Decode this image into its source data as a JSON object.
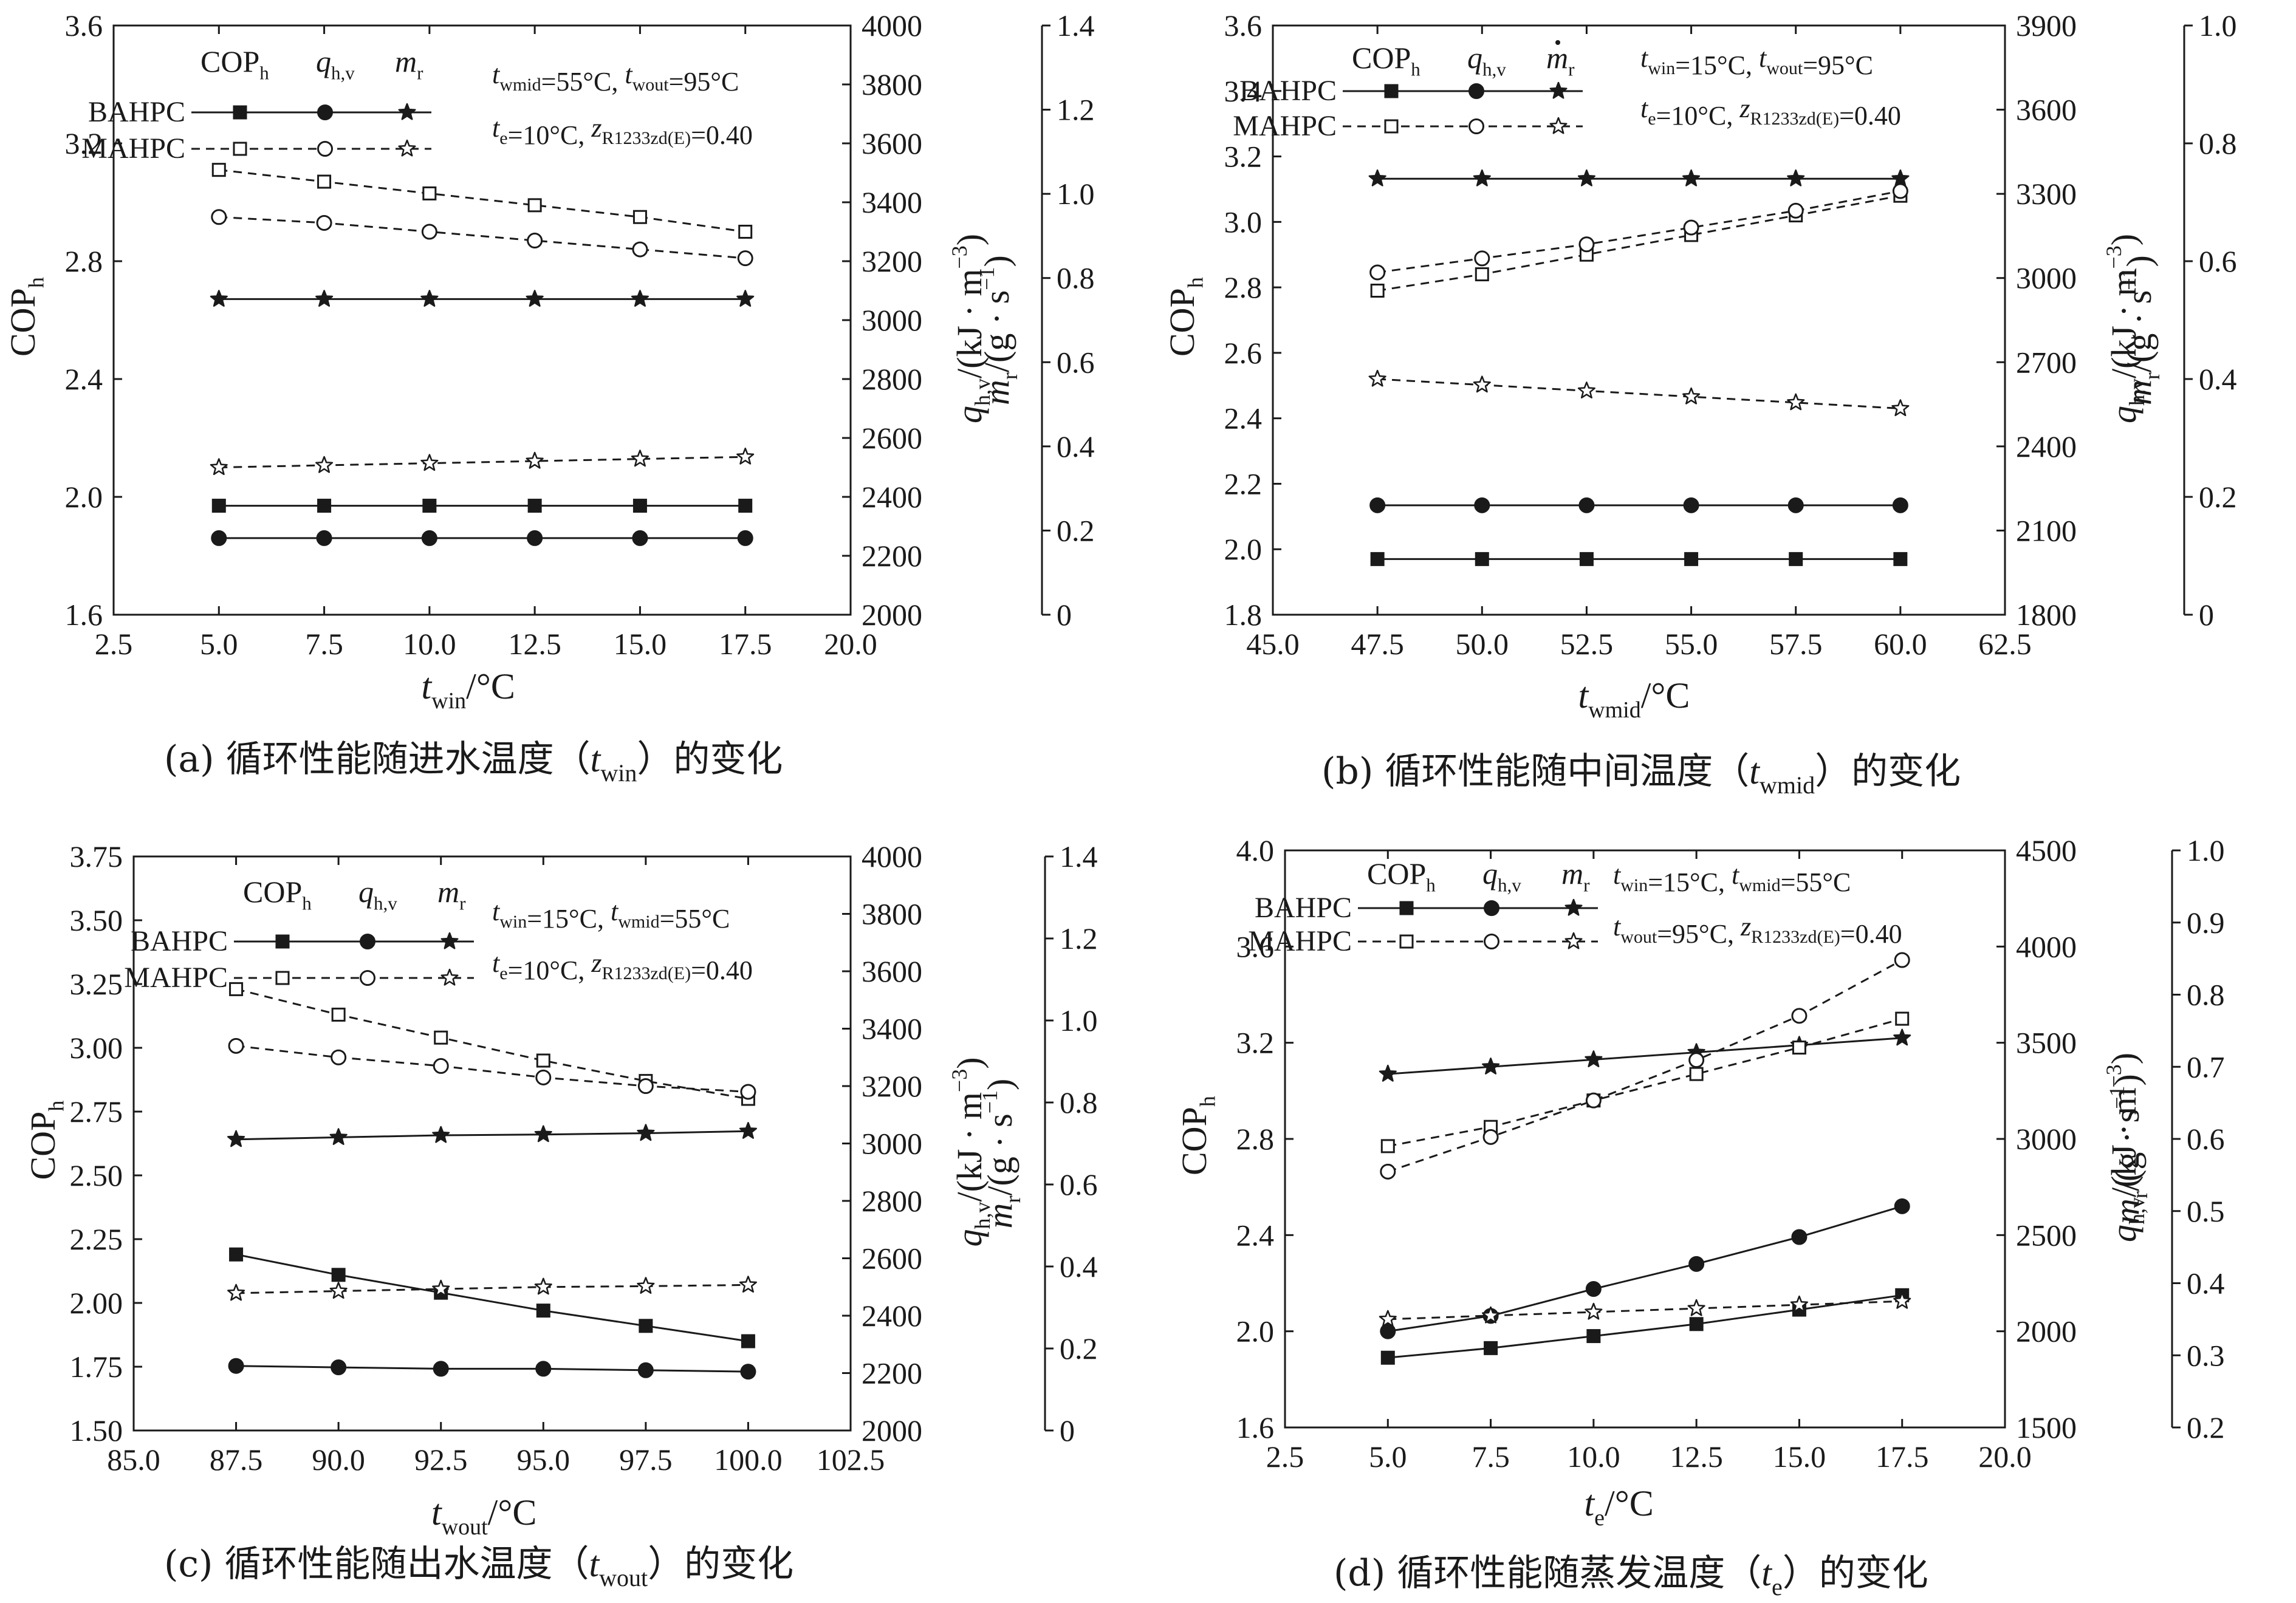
{
  "chart_data": [
    {
      "type": "line",
      "id": "a",
      "caption": {
        "prefix": "(a) 循环性能随进水温度（",
        "var": "t",
        "sub": "win",
        "suffix": "）的变化"
      },
      "xlabel": {
        "var": "t",
        "sub": "win",
        "unit": "/°C"
      },
      "x_ticks": [
        "2.5",
        "5.0",
        "7.5",
        "10.0",
        "12.5",
        "15.0",
        "17.5",
        "20.0"
      ],
      "xlim": [
        2.5,
        20.0
      ],
      "ylim_cop": [
        1.6,
        3.6
      ],
      "y_cop_ticks": [
        "1.6",
        "2.0",
        "2.4",
        "2.8",
        "3.2",
        "3.6"
      ],
      "ylim_q": [
        2000,
        4000
      ],
      "y_q_ticks": [
        "2000",
        "2200",
        "2400",
        "2600",
        "2800",
        "3000",
        "3200",
        "3400",
        "3600",
        "3800",
        "4000"
      ],
      "ylim_m": [
        0,
        1.4
      ],
      "y_m_ticks": [
        "0",
        "0.2",
        "0.4",
        "0.6",
        "0.8",
        "1.0",
        "1.2",
        "1.4"
      ],
      "conditions": [
        {
          "parts": [
            {
              "v": "t",
              "s": "wmid",
              "t": "=55°C,  "
            },
            {
              "v": "t",
              "s": "wout",
              "t": "=95°C"
            }
          ]
        },
        {
          "parts": [
            {
              "v": "t",
              "s": "e",
              "t": "=10°C,  "
            },
            {
              "v": "z",
              "s": "R1233zd(E)",
              "t": "=0.40"
            }
          ]
        }
      ],
      "m_dot": false,
      "x": [
        5.0,
        7.5,
        10.0,
        12.5,
        15.0,
        17.5
      ],
      "series": [
        {
          "name": "BAHPC",
          "metric": "COPh",
          "axis": "cop",
          "values": [
            1.97,
            1.97,
            1.97,
            1.97,
            1.97,
            1.97
          ]
        },
        {
          "name": "BAHPC",
          "metric": "qhv",
          "axis": "q",
          "values": [
            2260,
            2260,
            2260,
            2260,
            2260,
            2260
          ]
        },
        {
          "name": "BAHPC",
          "metric": "mr",
          "axis": "m",
          "values": [
            0.75,
            0.75,
            0.75,
            0.75,
            0.75,
            0.75
          ]
        },
        {
          "name": "MAHPC",
          "metric": "COPh",
          "axis": "cop",
          "values": [
            3.11,
            3.07,
            3.03,
            2.99,
            2.95,
            2.9
          ]
        },
        {
          "name": "MAHPC",
          "metric": "qhv",
          "axis": "q",
          "values": [
            3350,
            3330,
            3300,
            3270,
            3240,
            3210
          ]
        },
        {
          "name": "MAHPC",
          "metric": "mr",
          "axis": "m",
          "values": [
            0.35,
            0.355,
            0.36,
            0.365,
            0.37,
            0.375
          ]
        }
      ]
    },
    {
      "type": "line",
      "id": "b",
      "caption": {
        "prefix": "(b) 循环性能随中间温度（",
        "var": "t",
        "sub": "wmid",
        "suffix": "）的变化"
      },
      "xlabel": {
        "var": "t",
        "sub": "wmid",
        "unit": "/°C"
      },
      "x_ticks": [
        "45.0",
        "47.5",
        "50.0",
        "52.5",
        "55.0",
        "57.5",
        "60.0",
        "62.5"
      ],
      "xlim": [
        45.0,
        62.5
      ],
      "ylim_cop": [
        1.8,
        3.6
      ],
      "y_cop_ticks": [
        "1.8",
        "2.0",
        "2.2",
        "2.4",
        "2.6",
        "2.8",
        "3.0",
        "3.2",
        "3.4",
        "3.6"
      ],
      "ylim_q": [
        1800,
        3900
      ],
      "y_q_ticks": [
        "1800",
        "2100",
        "2400",
        "2700",
        "3000",
        "3300",
        "3600",
        "3900"
      ],
      "ylim_m": [
        0,
        1.0
      ],
      "y_m_ticks": [
        "0",
        "0.2",
        "0.4",
        "0.6",
        "0.8",
        "1.0"
      ],
      "conditions": [
        {
          "parts": [
            {
              "v": "t",
              "s": "win",
              "t": "=15°C,  "
            },
            {
              "v": "t",
              "s": "wout",
              "t": "=95°C"
            }
          ]
        },
        {
          "parts": [
            {
              "v": "t",
              "s": "e",
              "t": "=10°C,  "
            },
            {
              "v": "z",
              "s": "R1233zd(E)",
              "t": "=0.40"
            }
          ]
        }
      ],
      "m_dot": true,
      "x": [
        47.5,
        50.0,
        52.5,
        55.0,
        57.5,
        60.0
      ],
      "series": [
        {
          "name": "BAHPC",
          "metric": "COPh",
          "axis": "cop",
          "values": [
            1.97,
            1.97,
            1.97,
            1.97,
            1.97,
            1.97
          ]
        },
        {
          "name": "BAHPC",
          "metric": "qhv",
          "axis": "q",
          "values": [
            2190,
            2190,
            2190,
            2190,
            2190,
            2190
          ]
        },
        {
          "name": "BAHPC",
          "metric": "mr",
          "axis": "m",
          "values": [
            0.74,
            0.74,
            0.74,
            0.74,
            0.74,
            0.74
          ]
        },
        {
          "name": "MAHPC",
          "metric": "COPh",
          "axis": "cop",
          "values": [
            2.79,
            2.84,
            2.9,
            2.96,
            3.02,
            3.08
          ]
        },
        {
          "name": "MAHPC",
          "metric": "qhv",
          "axis": "q",
          "values": [
            3020,
            3070,
            3120,
            3180,
            3240,
            3310
          ]
        },
        {
          "name": "MAHPC",
          "metric": "mr",
          "axis": "m",
          "values": [
            0.4,
            0.39,
            0.38,
            0.37,
            0.36,
            0.35
          ]
        }
      ]
    },
    {
      "type": "line",
      "id": "c",
      "caption": {
        "prefix": "(c) 循环性能随出水温度（",
        "var": "t",
        "sub": "wout",
        "suffix": "）的变化"
      },
      "xlabel": {
        "var": "t",
        "sub": "wout",
        "unit": "/°C"
      },
      "x_ticks": [
        "85.0",
        "87.5",
        "90.0",
        "92.5",
        "95.0",
        "97.5",
        "100.0",
        "102.5"
      ],
      "xlim": [
        85.0,
        102.5
      ],
      "ylim_cop": [
        1.5,
        3.75
      ],
      "y_cop_ticks": [
        "1.50",
        "1.75",
        "2.00",
        "2.25",
        "2.50",
        "2.75",
        "3.00",
        "3.25",
        "3.50",
        "3.75"
      ],
      "ylim_q": [
        2000,
        4000
      ],
      "y_q_ticks": [
        "2000",
        "2200",
        "2400",
        "2600",
        "2800",
        "3000",
        "3200",
        "3400",
        "3600",
        "3800",
        "4000"
      ],
      "ylim_m": [
        0,
        1.4
      ],
      "y_m_ticks": [
        "0",
        "0.2",
        "0.4",
        "0.6",
        "0.8",
        "1.0",
        "1.2",
        "1.4"
      ],
      "conditions": [
        {
          "parts": [
            {
              "v": "t",
              "s": "win",
              "t": "=15°C,  "
            },
            {
              "v": "t",
              "s": "wmid",
              "t": "=55°C"
            }
          ]
        },
        {
          "parts": [
            {
              "v": "t",
              "s": "e",
              "t": "=10°C,  "
            },
            {
              "v": "z",
              "s": "R1233zd(E)",
              "t": "=0.40"
            }
          ]
        }
      ],
      "m_dot": false,
      "x": [
        87.5,
        90.0,
        92.5,
        95.0,
        97.5,
        100.0
      ],
      "series": [
        {
          "name": "BAHPC",
          "metric": "COPh",
          "axis": "cop",
          "values": [
            2.19,
            2.11,
            2.04,
            1.97,
            1.91,
            1.85
          ]
        },
        {
          "name": "BAHPC",
          "metric": "qhv",
          "axis": "q",
          "values": [
            2225,
            2220,
            2215,
            2215,
            2210,
            2205
          ]
        },
        {
          "name": "BAHPC",
          "metric": "mr",
          "axis": "m",
          "values": [
            0.71,
            0.715,
            0.72,
            0.722,
            0.725,
            0.73
          ]
        },
        {
          "name": "MAHPC",
          "metric": "COPh",
          "axis": "cop",
          "values": [
            3.23,
            3.13,
            3.04,
            2.95,
            2.87,
            2.8
          ]
        },
        {
          "name": "MAHPC",
          "metric": "qhv",
          "axis": "q",
          "values": [
            3340,
            3300,
            3270,
            3230,
            3200,
            3180
          ]
        },
        {
          "name": "MAHPC",
          "metric": "mr",
          "axis": "m",
          "values": [
            0.335,
            0.34,
            0.345,
            0.35,
            0.352,
            0.355
          ]
        }
      ]
    },
    {
      "type": "line",
      "id": "d",
      "caption": {
        "prefix": "(d) 循环性能随蒸发温度（",
        "var": "t",
        "sub": "e",
        "suffix": "）的变化"
      },
      "xlabel": {
        "var": "t",
        "sub": "e",
        "unit": "/°C"
      },
      "x_ticks": [
        "2.5",
        "5.0",
        "7.5",
        "10.0",
        "12.5",
        "15.0",
        "17.5",
        "20.0"
      ],
      "xlim": [
        2.5,
        20.0
      ],
      "ylim_cop": [
        1.6,
        4.0
      ],
      "y_cop_ticks": [
        "1.6",
        "2.0",
        "2.4",
        "2.8",
        "3.2",
        "3.6",
        "4.0"
      ],
      "ylim_q": [
        1500,
        4500
      ],
      "y_q_ticks": [
        "1500",
        "2000",
        "2500",
        "3000",
        "3500",
        "4000",
        "4500"
      ],
      "ylim_m": [
        0.2,
        1.0
      ],
      "y_m_ticks": [
        "0.2",
        "0.3",
        "0.4",
        "0.5",
        "0.6",
        "0.7",
        "0.8",
        "0.9",
        "1.0"
      ],
      "conditions": [
        {
          "parts": [
            {
              "v": "t",
              "s": "win",
              "t": "=15°C,  "
            },
            {
              "v": "t",
              "s": "wmid",
              "t": "=55°C"
            }
          ]
        },
        {
          "parts": [
            {
              "v": "t",
              "s": "wout",
              "t": "=95°C,  "
            },
            {
              "v": "z",
              "s": "R1233zd(E)",
              "t": "=0.40"
            }
          ]
        }
      ],
      "m_dot": false,
      "x": [
        5.0,
        7.5,
        10.0,
        12.5,
        15.0,
        17.5
      ],
      "series": [
        {
          "name": "BAHPC",
          "metric": "COPh",
          "axis": "cop",
          "values": [
            1.89,
            1.93,
            1.98,
            2.03,
            2.09,
            2.15
          ]
        },
        {
          "name": "BAHPC",
          "metric": "qhv",
          "axis": "q",
          "values": [
            2000,
            2080,
            2220,
            2350,
            2490,
            2650
          ]
        },
        {
          "name": "BAHPC",
          "metric": "mr",
          "axis": "m",
          "values": [
            0.69,
            0.7,
            0.71,
            0.72,
            0.73,
            0.74
          ]
        },
        {
          "name": "MAHPC",
          "metric": "COPh",
          "axis": "cop",
          "values": [
            2.77,
            2.85,
            2.96,
            3.07,
            3.18,
            3.3
          ]
        },
        {
          "name": "MAHPC",
          "metric": "qhv",
          "axis": "q",
          "values": [
            2830,
            3010,
            3200,
            3410,
            3640,
            3930
          ]
        },
        {
          "name": "MAHPC",
          "metric": "mr",
          "axis": "m",
          "values": [
            0.35,
            0.355,
            0.36,
            0.365,
            0.37,
            0.375
          ]
        }
      ]
    }
  ],
  "legend": {
    "col_cop": {
      "v": "COP",
      "s": "h"
    },
    "col_q": {
      "v": "q",
      "s": "h,v"
    },
    "col_m": {
      "v": "m",
      "s": "r"
    },
    "row_b": "BAHPC",
    "row_m": "MAHPC"
  },
  "axis_titles": {
    "cop": {
      "v": "COP",
      "s": "h"
    },
    "q": {
      "v": "q",
      "s": "h,v",
      "unit": "/(kJ · m",
      "exp": "−3",
      "close": ")"
    },
    "m": {
      "v": "m",
      "s": "r",
      "unit": "/(g · s",
      "exp": "−1",
      "close": ")"
    }
  }
}
